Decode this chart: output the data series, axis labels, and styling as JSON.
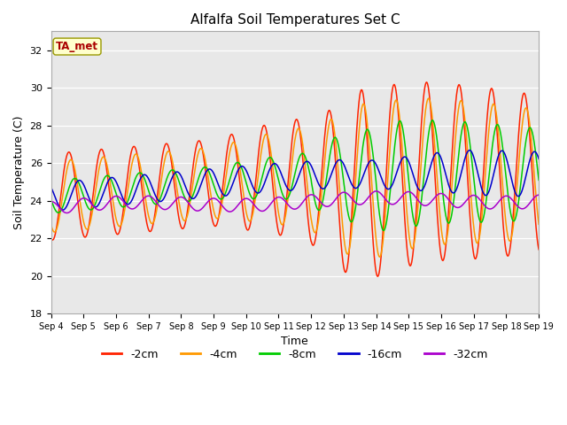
{
  "title": "Alfalfa Soil Temperatures Set C",
  "xlabel": "Time",
  "ylabel": "Soil Temperature (C)",
  "ylim": [
    18,
    33
  ],
  "yticks": [
    18,
    20,
    22,
    24,
    26,
    28,
    30,
    32
  ],
  "xlim": [
    0,
    15
  ],
  "xtick_labels": [
    "Sep 4",
    "Sep 5",
    "Sep 6",
    "Sep 7",
    "Sep 8",
    "Sep 9",
    "Sep 10",
    "Sep 11",
    "Sep 12",
    "Sep 13",
    "Sep 14",
    "Sep 15",
    "Sep 16",
    "Sep 17",
    "Sep 18",
    "Sep 19"
  ],
  "colors": {
    "-2cm": "#ff2200",
    "-4cm": "#ff9900",
    "-8cm": "#00cc00",
    "-16cm": "#0000cc",
    "-32cm": "#aa00cc"
  },
  "annotation_text": "TA_met",
  "annotation_color": "#aa0000",
  "annotation_bg": "#ffffcc",
  "annotation_edge": "#999900",
  "fig_bg": "#ffffff",
  "plot_bg": "#e8e8e8",
  "grid_color": "#ffffff",
  "legend_labels": [
    "-2cm",
    "-4cm",
    "-8cm",
    "-16cm",
    "-32cm"
  ]
}
